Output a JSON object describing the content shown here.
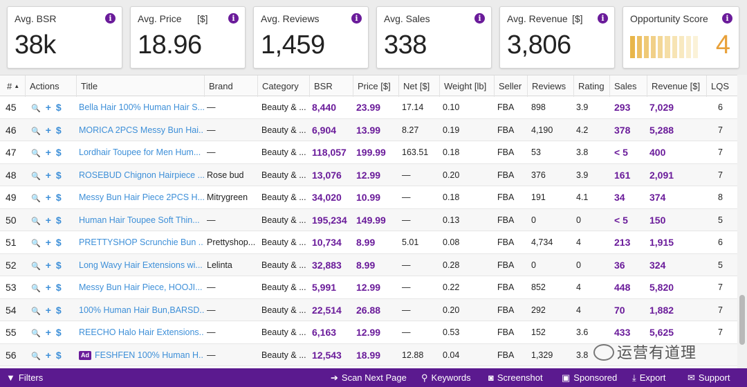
{
  "cards": [
    {
      "label": "Avg. BSR",
      "unit": "",
      "value": "38k"
    },
    {
      "label": "Avg. Price",
      "unit": "[$]",
      "value": "18.96"
    },
    {
      "label": "Avg. Reviews",
      "unit": "",
      "value": "1,459"
    },
    {
      "label": "Avg. Sales",
      "unit": "",
      "value": "338"
    },
    {
      "label": "Avg. Revenue",
      "unit": "[$]",
      "value": "3,806"
    },
    {
      "label": "Opportunity Score",
      "unit": "",
      "value": "4",
      "bar_colors": [
        "#e8b64a",
        "#ecc064",
        "#efc976",
        "#f1d088",
        "#f3d796",
        "#f5dea6",
        "#f7e4b4",
        "#f8e9c0",
        "#faeecd",
        "#fbf2d8"
      ]
    }
  ],
  "info_icon": "i",
  "columns": [
    "#",
    "Actions",
    "Title",
    "Brand",
    "Category",
    "BSR",
    "Price [$]",
    "Net [$]",
    "Weight [lb]",
    "Seller",
    "Reviews",
    "Rating",
    "Sales",
    "Revenue [$]",
    "LQS"
  ],
  "sort_indicator": "▲",
  "action_glyphs": {
    "search": "🔍",
    "add": "+",
    "price": "$"
  },
  "ad_badge": "Ad",
  "rows": [
    {
      "n": "45",
      "title": "Bella Hair 100% Human Hair S...",
      "brand": "—",
      "category": "Beauty & ...",
      "bsr": "8,440",
      "price": "23.99",
      "net": "17.14",
      "weight": "0.10",
      "seller": "FBA",
      "reviews": "898",
      "rating": "3.9",
      "sales": "293",
      "revenue": "7,029",
      "lqs": "6",
      "ad": false
    },
    {
      "n": "46",
      "title": "MORICA 2PCS Messy Bun Hai...",
      "brand": "—",
      "category": "Beauty & ...",
      "bsr": "6,904",
      "price": "13.99",
      "net": "8.27",
      "weight": "0.19",
      "seller": "FBA",
      "reviews": "4,190",
      "rating": "4.2",
      "sales": "378",
      "revenue": "5,288",
      "lqs": "7",
      "ad": false
    },
    {
      "n": "47",
      "title": "Lordhair Toupee for Men Hum...",
      "brand": "—",
      "category": "Beauty & ...",
      "bsr": "118,057",
      "price": "199.99",
      "net": "163.51",
      "weight": "0.18",
      "seller": "FBA",
      "reviews": "53",
      "rating": "3.8",
      "sales": "< 5",
      "revenue": "400",
      "lqs": "7",
      "ad": false
    },
    {
      "n": "48",
      "title": "ROSEBUD Chignon Hairpiece ...",
      "brand": "Rose bud",
      "category": "Beauty & ...",
      "bsr": "13,076",
      "price": "12.99",
      "net": "—",
      "weight": "0.20",
      "seller": "FBA",
      "reviews": "376",
      "rating": "3.9",
      "sales": "161",
      "revenue": "2,091",
      "lqs": "7",
      "ad": false
    },
    {
      "n": "49",
      "title": "Messy Bun Hair Piece 2PCS H...",
      "brand": "Mitrygreen",
      "category": "Beauty & ...",
      "bsr": "34,020",
      "price": "10.99",
      "net": "—",
      "weight": "0.18",
      "seller": "FBA",
      "reviews": "191",
      "rating": "4.1",
      "sales": "34",
      "revenue": "374",
      "lqs": "8",
      "ad": false
    },
    {
      "n": "50",
      "title": "Human Hair Toupee Soft Thin...",
      "brand": "—",
      "category": "Beauty & ...",
      "bsr": "195,234",
      "price": "149.99",
      "net": "—",
      "weight": "0.13",
      "seller": "FBA",
      "reviews": "0",
      "rating": "0",
      "sales": "< 5",
      "revenue": "150",
      "lqs": "5",
      "ad": false
    },
    {
      "n": "51",
      "title": "PRETTYSHOP Scrunchie Bun ...",
      "brand": "Prettyshop...",
      "category": "Beauty & ...",
      "bsr": "10,734",
      "price": "8.99",
      "net": "5.01",
      "weight": "0.08",
      "seller": "FBA",
      "reviews": "4,734",
      "rating": "4",
      "sales": "213",
      "revenue": "1,915",
      "lqs": "6",
      "ad": false
    },
    {
      "n": "52",
      "title": "Long Wavy Hair Extensions wi...",
      "brand": "Lelinta",
      "category": "Beauty & ...",
      "bsr": "32,883",
      "price": "8.99",
      "net": "—",
      "weight": "0.28",
      "seller": "FBA",
      "reviews": "0",
      "rating": "0",
      "sales": "36",
      "revenue": "324",
      "lqs": "5",
      "ad": false
    },
    {
      "n": "53",
      "title": "Messy Bun Hair Piece, HOOJI...",
      "brand": "—",
      "category": "Beauty & ...",
      "bsr": "5,991",
      "price": "12.99",
      "net": "—",
      "weight": "0.22",
      "seller": "FBA",
      "reviews": "852",
      "rating": "4",
      "sales": "448",
      "revenue": "5,820",
      "lqs": "7",
      "ad": false
    },
    {
      "n": "54",
      "title": "100% Human Hair Bun,BARSD...",
      "brand": "—",
      "category": "Beauty & ...",
      "bsr": "22,514",
      "price": "26.88",
      "net": "—",
      "weight": "0.20",
      "seller": "FBA",
      "reviews": "292",
      "rating": "4",
      "sales": "70",
      "revenue": "1,882",
      "lqs": "7",
      "ad": false
    },
    {
      "n": "55",
      "title": "REECHO Halo Hair Extensions...",
      "brand": "—",
      "category": "Beauty & ...",
      "bsr": "6,163",
      "price": "12.99",
      "net": "—",
      "weight": "0.53",
      "seller": "FBA",
      "reviews": "152",
      "rating": "3.6",
      "sales": "433",
      "revenue": "5,625",
      "lqs": "7",
      "ad": false
    },
    {
      "n": "56",
      "title": "FESHFEN 100% Human H...",
      "brand": "—",
      "category": "Beauty & ...",
      "bsr": "12,543",
      "price": "18.99",
      "net": "12.88",
      "weight": "0.04",
      "seller": "FBA",
      "reviews": "1,329",
      "rating": "3.8",
      "sales": "",
      "revenue": "",
      "lqs": "",
      "ad": true
    }
  ],
  "bottom": {
    "filters": "Filters",
    "scan_next": "Scan Next Page",
    "keywords": "Keywords",
    "screenshot": "Screenshot",
    "sponsored": "Sponsored",
    "export": "Export",
    "support": "Support"
  },
  "watermark": "运营有道理"
}
